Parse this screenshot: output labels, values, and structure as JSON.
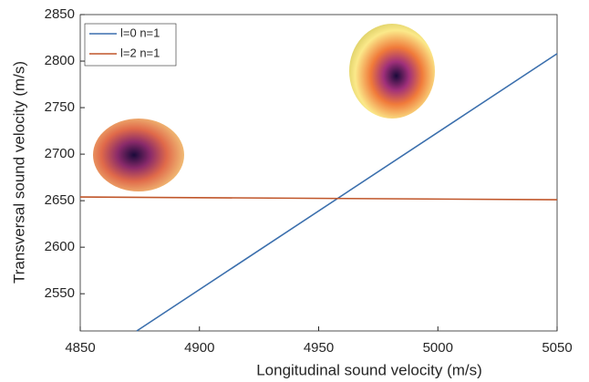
{
  "chart_data": {
    "type": "line",
    "x_label": "Longitudinal sound velocity (m/s)",
    "y_label": "Transversal sound velocity (m/s)",
    "xlim": [
      4850,
      5050
    ],
    "xticks": [
      4850,
      4900,
      4950,
      5000,
      5050
    ],
    "ylim": [
      2510,
      2850
    ],
    "yticks": [
      2550,
      2600,
      2650,
      2700,
      2750,
      2800,
      2850
    ],
    "legend": "upper left",
    "series": [
      {
        "name": "l=0 n=1",
        "color": "#3b6fad",
        "x": [
          4873.7,
          5050
        ],
        "values": [
          2510,
          2808
        ]
      },
      {
        "name": "l=2 n=1",
        "color": "#c0562a",
        "x": [
          4850,
          5050
        ],
        "values": [
          2654,
          2651
        ]
      }
    ]
  }
}
